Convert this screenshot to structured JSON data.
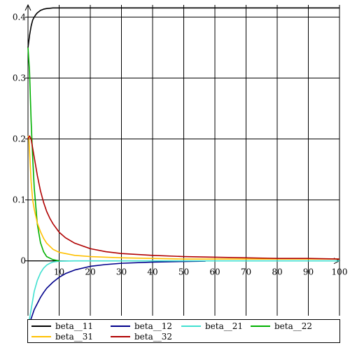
{
  "chart_data": {
    "type": "line",
    "title": "",
    "xlabel": "",
    "ylabel": "",
    "xlim": [
      0,
      100
    ],
    "ylim": [
      -0.09,
      0.42
    ],
    "grid": true,
    "legend_position": "bottom",
    "x_ticks": [
      10,
      20,
      30,
      40,
      50,
      60,
      70,
      80,
      90,
      100
    ],
    "x_tick_labels": [
      "10",
      "20",
      "30",
      "40",
      "50",
      "60",
      "70",
      "80",
      "90",
      "100"
    ],
    "y_ticks": [
      0.4,
      0.3,
      0.2,
      0.1,
      0
    ],
    "y_tick_labels": [
      "0.4",
      "0.3",
      "0.2",
      "0.1",
      "0"
    ],
    "series": [
      {
        "name": "beta__11",
        "color": "#000000",
        "x": [
          0,
          0.5,
          1,
          1.5,
          2,
          2.5,
          3,
          4,
          5,
          6,
          7,
          8,
          10,
          15,
          20,
          100
        ],
        "y": [
          0.35,
          0.37,
          0.385,
          0.395,
          0.4,
          0.404,
          0.407,
          0.411,
          0.413,
          0.414,
          0.4145,
          0.415,
          0.415,
          0.415,
          0.415,
          0.415
        ]
      },
      {
        "name": "beta__12",
        "color": "#00008b",
        "x": [
          0,
          0.5,
          1,
          2,
          3,
          4,
          5,
          6,
          8,
          10,
          12,
          15,
          20,
          25,
          30,
          40,
          50,
          57
        ],
        "y": [
          -0.1,
          -0.1,
          -0.095,
          -0.08,
          -0.07,
          -0.06,
          -0.052,
          -0.045,
          -0.035,
          -0.027,
          -0.021,
          -0.015,
          -0.009,
          -0.006,
          -0.004,
          -0.002,
          -0.001,
          -0.0005
        ]
      },
      {
        "name": "beta__21",
        "color": "#40e0d0",
        "x": [
          0,
          0.5,
          1,
          1.5,
          2,
          3,
          4,
          5,
          6,
          7,
          8,
          10,
          15,
          20,
          100
        ],
        "y": [
          -0.1,
          -0.095,
          -0.08,
          -0.065,
          -0.05,
          -0.032,
          -0.02,
          -0.012,
          -0.007,
          -0.004,
          -0.002,
          -0.0005,
          0,
          0,
          0
        ]
      },
      {
        "name": "beta__22",
        "color": "#00b000",
        "x": [
          0,
          0.5,
          1,
          1.5,
          2,
          3,
          4,
          5,
          6,
          8,
          10
        ],
        "y": [
          0.35,
          0.31,
          0.23,
          0.17,
          0.12,
          0.06,
          0.03,
          0.015,
          0.007,
          0.002,
          0
        ]
      },
      {
        "name": "beta__31",
        "color": "#ffc000",
        "x": [
          0,
          0.3,
          0.6,
          1,
          1.5,
          2,
          3,
          4,
          5,
          6,
          8,
          10,
          15,
          20,
          30,
          40,
          50,
          60,
          100
        ],
        "y": [
          0.205,
          0.2,
          0.17,
          0.13,
          0.1,
          0.085,
          0.062,
          0.048,
          0.037,
          0.029,
          0.019,
          0.014,
          0.009,
          0.007,
          0.005,
          0.004,
          0.003,
          0.003,
          0.003
        ]
      },
      {
        "name": "beta__32",
        "color": "#b00000",
        "x": [
          0,
          0.5,
          1,
          1.5,
          2,
          3,
          4,
          5,
          6,
          7,
          8,
          10,
          12,
          15,
          20,
          25,
          30,
          40,
          50,
          60,
          70,
          80,
          90,
          100
        ],
        "y": [
          0.2,
          0.205,
          0.2,
          0.185,
          0.17,
          0.14,
          0.115,
          0.096,
          0.081,
          0.07,
          0.061,
          0.047,
          0.038,
          0.029,
          0.02,
          0.015,
          0.012,
          0.009,
          0.007,
          0.006,
          0.005,
          0.004,
          0.004,
          0.003
        ]
      }
    ]
  }
}
